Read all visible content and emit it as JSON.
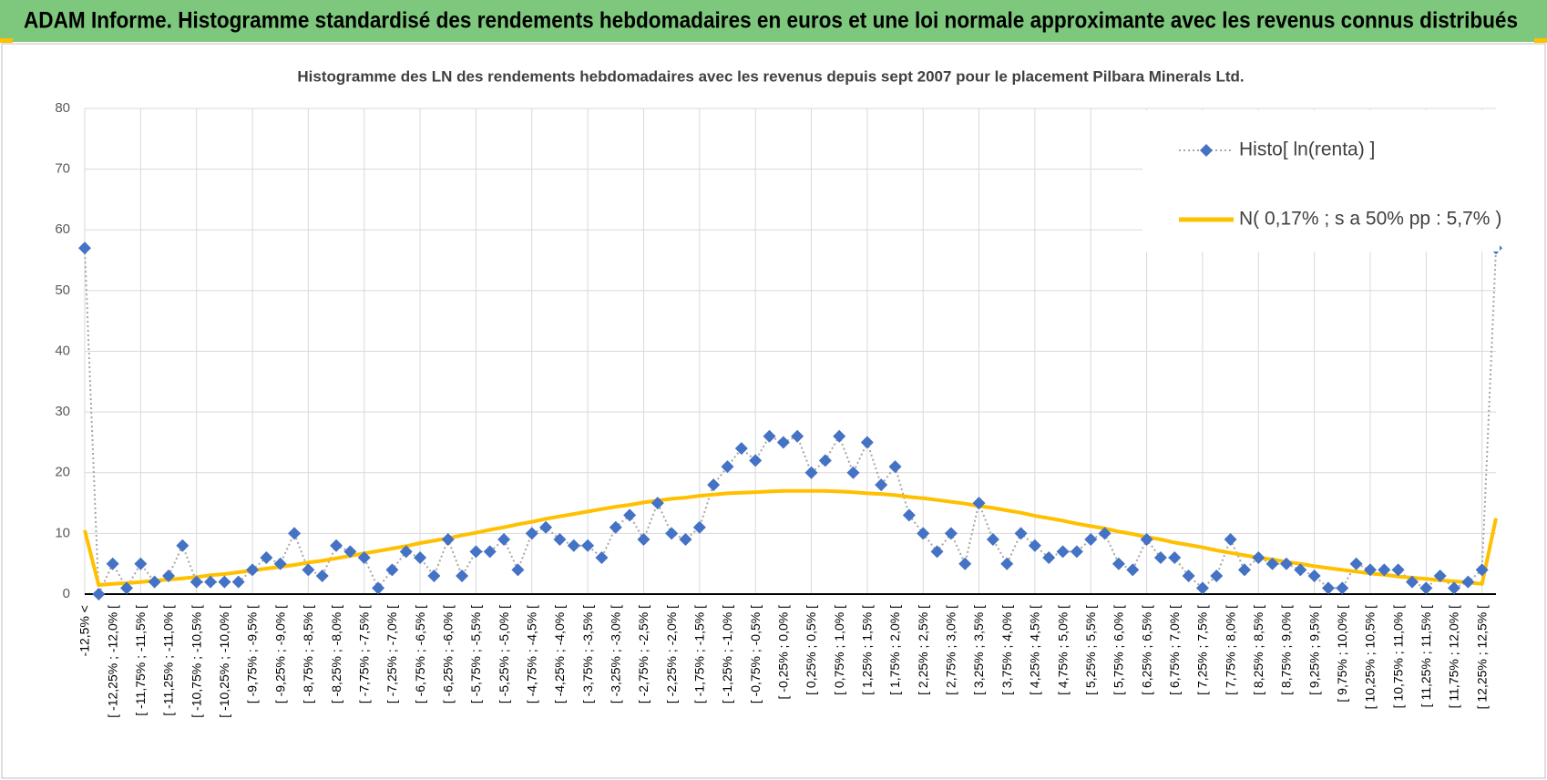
{
  "header": {
    "title": "ADAM Informe. Histogramme standardisé des rendements hebdomadaires en euros et une loi normale approximante avec les revenus connus distribués"
  },
  "chart_data": {
    "type": "line",
    "title": "Histogramme des LN des rendements hebdomadaires avec les revenus depuis sept 2007 pour le placement Pilbara  Minerals Ltd.",
    "categories": [
      "-12,5% <",
      null,
      "[ -12,25% ; -12,0% [",
      null,
      "[ -11,75% ; -11,5% [",
      null,
      "[ -11,25% ; -11,0% [",
      null,
      "[ -10,75% ; -10,5% [",
      null,
      "[ -10,25% ; -10,0% [",
      null,
      "[ -9,75% ; -9,5% [",
      null,
      "[ -9,25% ; -9,0% [",
      null,
      "[ -8,75% ; -8,5% [",
      null,
      "[ -8,25% ; -8,0% [",
      null,
      "[ -7,75% ; -7,5% [",
      null,
      "[ -7,25% ; -7,0% [",
      null,
      "[ -6,75% ; -6,5% [",
      null,
      "[ -6,25% ; -6,0% [",
      null,
      "[ -5,75% ; -5,5% [",
      null,
      "[ -5,25% ; -5,0% [",
      null,
      "[ -4,75% ; -4,5% [",
      null,
      "[ -4,25% ; -4,0% [",
      null,
      "[ -3,75% ; -3,5% [",
      null,
      "[ -3,25% ; -3,0% [",
      null,
      "[ -2,75% ; -2,5% [",
      null,
      "[ -2,25% ; -2,0% [",
      null,
      "[ -1,75% ; -1,5% [",
      null,
      "[ -1,25% ; -1,0% [",
      null,
      "[ -0,75% ; -0,5% [",
      null,
      "[ -0,25% ; 0,0% [",
      null,
      "[ 0,25% ; 0,5% [",
      null,
      "[ 0,75% ; 1,0% [",
      null,
      "[ 1,25% ; 1,5% [",
      null,
      "[ 1,75% ; 2,0% [",
      null,
      "[ 2,25% ; 2,5% [",
      null,
      "[ 2,75% ; 3,0% [",
      null,
      "[ 3,25% ; 3,5% [",
      null,
      "[ 3,75% ; 4,0% [",
      null,
      "[ 4,25% ; 4,5% [",
      null,
      "[ 4,75% ; 5,0% [",
      null,
      "[ 5,25% ; 5,5% [",
      null,
      "[ 5,75% ; 6,0% [",
      null,
      "[ 6,25% ; 6,5% [",
      null,
      "[ 6,75% ; 7,0% [",
      null,
      "[ 7,25% ; 7,5% [",
      null,
      "[ 7,75% ; 8,0% [",
      null,
      "[ 8,25% ; 8,5% [",
      null,
      "[ 8,75% ; 9,0% [",
      null,
      "[ 9,25% ; 9,5% [",
      null,
      "[ 9,75% ; 10,0% [",
      null,
      "[ 10,25% ; 10,5% [",
      null,
      "[ 10,75% ; 11,0% [",
      null,
      "[ 11,25% ; 11,5% [",
      null,
      "[ 11,75% ; 12,0% [",
      null,
      "[ 12,25% ; 12,5% [",
      null
    ],
    "series": [
      {
        "name": "Histo[ ln(renta) ]",
        "color": "#4472c4",
        "marker": "diamond",
        "line_color": "#a6a6a6",
        "values": [
          57,
          0,
          5,
          1,
          5,
          2,
          3,
          8,
          2,
          2,
          2,
          2,
          4,
          6,
          5,
          10,
          4,
          3,
          8,
          7,
          6,
          1,
          4,
          7,
          6,
          3,
          9,
          3,
          7,
          7,
          9,
          4,
          10,
          11,
          9,
          8,
          8,
          6,
          11,
          13,
          9,
          15,
          10,
          9,
          11,
          18,
          21,
          24,
          22,
          26,
          25,
          26,
          20,
          22,
          26,
          20,
          25,
          18,
          21,
          13,
          10,
          7,
          10,
          5,
          15,
          9,
          5,
          10,
          8,
          6,
          7,
          7,
          9,
          10,
          5,
          4,
          9,
          6,
          6,
          3,
          1,
          3,
          9,
          4,
          6,
          5,
          5,
          4,
          3,
          1,
          1,
          5,
          4,
          4,
          4,
          2,
          1,
          3,
          1,
          2,
          4,
          57
        ]
      },
      {
        "name": "N( 0,17% ; s a 50% pp : 5,7% )",
        "color": "#ffc000",
        "values": [
          10.5,
          1.5,
          1.7,
          1.8,
          2.0,
          2.2,
          2.4,
          2.6,
          2.8,
          3.1,
          3.3,
          3.6,
          3.9,
          4.2,
          4.5,
          4.8,
          5.2,
          5.5,
          5.9,
          6.3,
          6.7,
          7.1,
          7.5,
          7.9,
          8.4,
          8.8,
          9.2,
          9.7,
          10.1,
          10.6,
          11.0,
          11.5,
          11.9,
          12.4,
          12.8,
          13.2,
          13.6,
          14.0,
          14.4,
          14.7,
          15.1,
          15.4,
          15.7,
          15.9,
          16.2,
          16.4,
          16.6,
          16.7,
          16.8,
          16.9,
          17.0,
          17.0,
          17.0,
          17.0,
          16.9,
          16.8,
          16.6,
          16.5,
          16.3,
          16.0,
          15.8,
          15.5,
          15.2,
          14.9,
          14.5,
          14.2,
          13.8,
          13.4,
          12.9,
          12.5,
          12.1,
          11.6,
          11.2,
          10.8,
          10.3,
          9.9,
          9.4,
          9.0,
          8.5,
          8.1,
          7.7,
          7.2,
          6.8,
          6.4,
          6.0,
          5.7,
          5.3,
          5.0,
          4.6,
          4.3,
          4.0,
          3.7,
          3.4,
          3.2,
          2.9,
          2.7,
          2.5,
          2.3,
          2.1,
          1.9,
          1.7,
          12.5
        ]
      }
    ],
    "ylim": [
      0,
      80
    ],
    "yticks": [
      0,
      10,
      20,
      30,
      40,
      50,
      60,
      70,
      80
    ],
    "grid": true,
    "legend": "upper right"
  }
}
